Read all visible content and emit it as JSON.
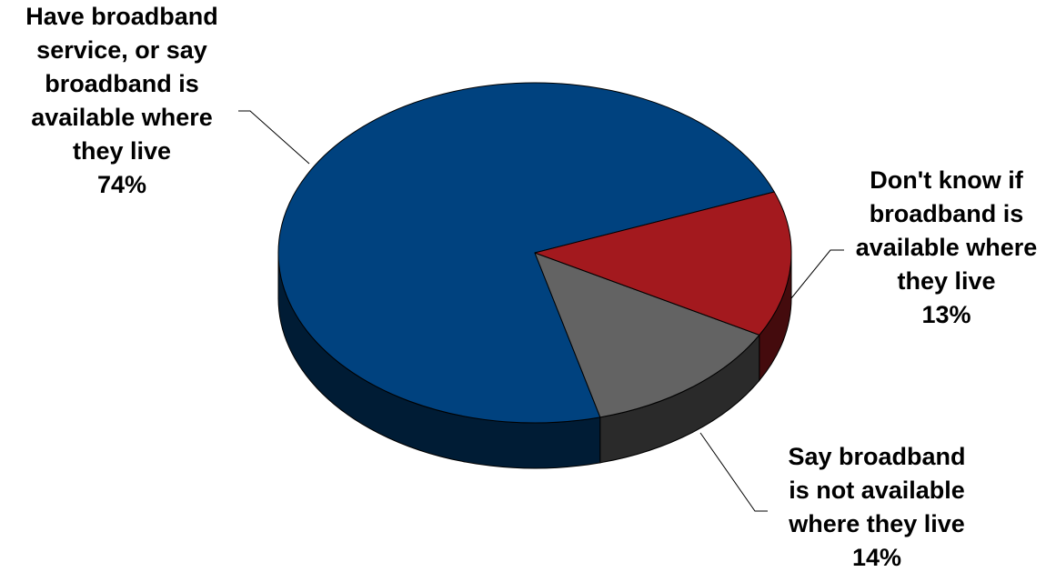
{
  "chart_data": {
    "type": "pie",
    "title": "",
    "slices": [
      {
        "label": "Have broadband\nservice, or say\nbroadband is\navailable where\nthey live\n74%",
        "value": 74,
        "color": "#00427f"
      },
      {
        "label": "Don't know if\nbroadband is\navailable where\nthey live\n13%",
        "value": 13,
        "color": "#636363"
      },
      {
        "label": "Say broadband\nis not available\nwhere they live\n14%",
        "value": 14,
        "color": "#a3191e"
      }
    ]
  }
}
